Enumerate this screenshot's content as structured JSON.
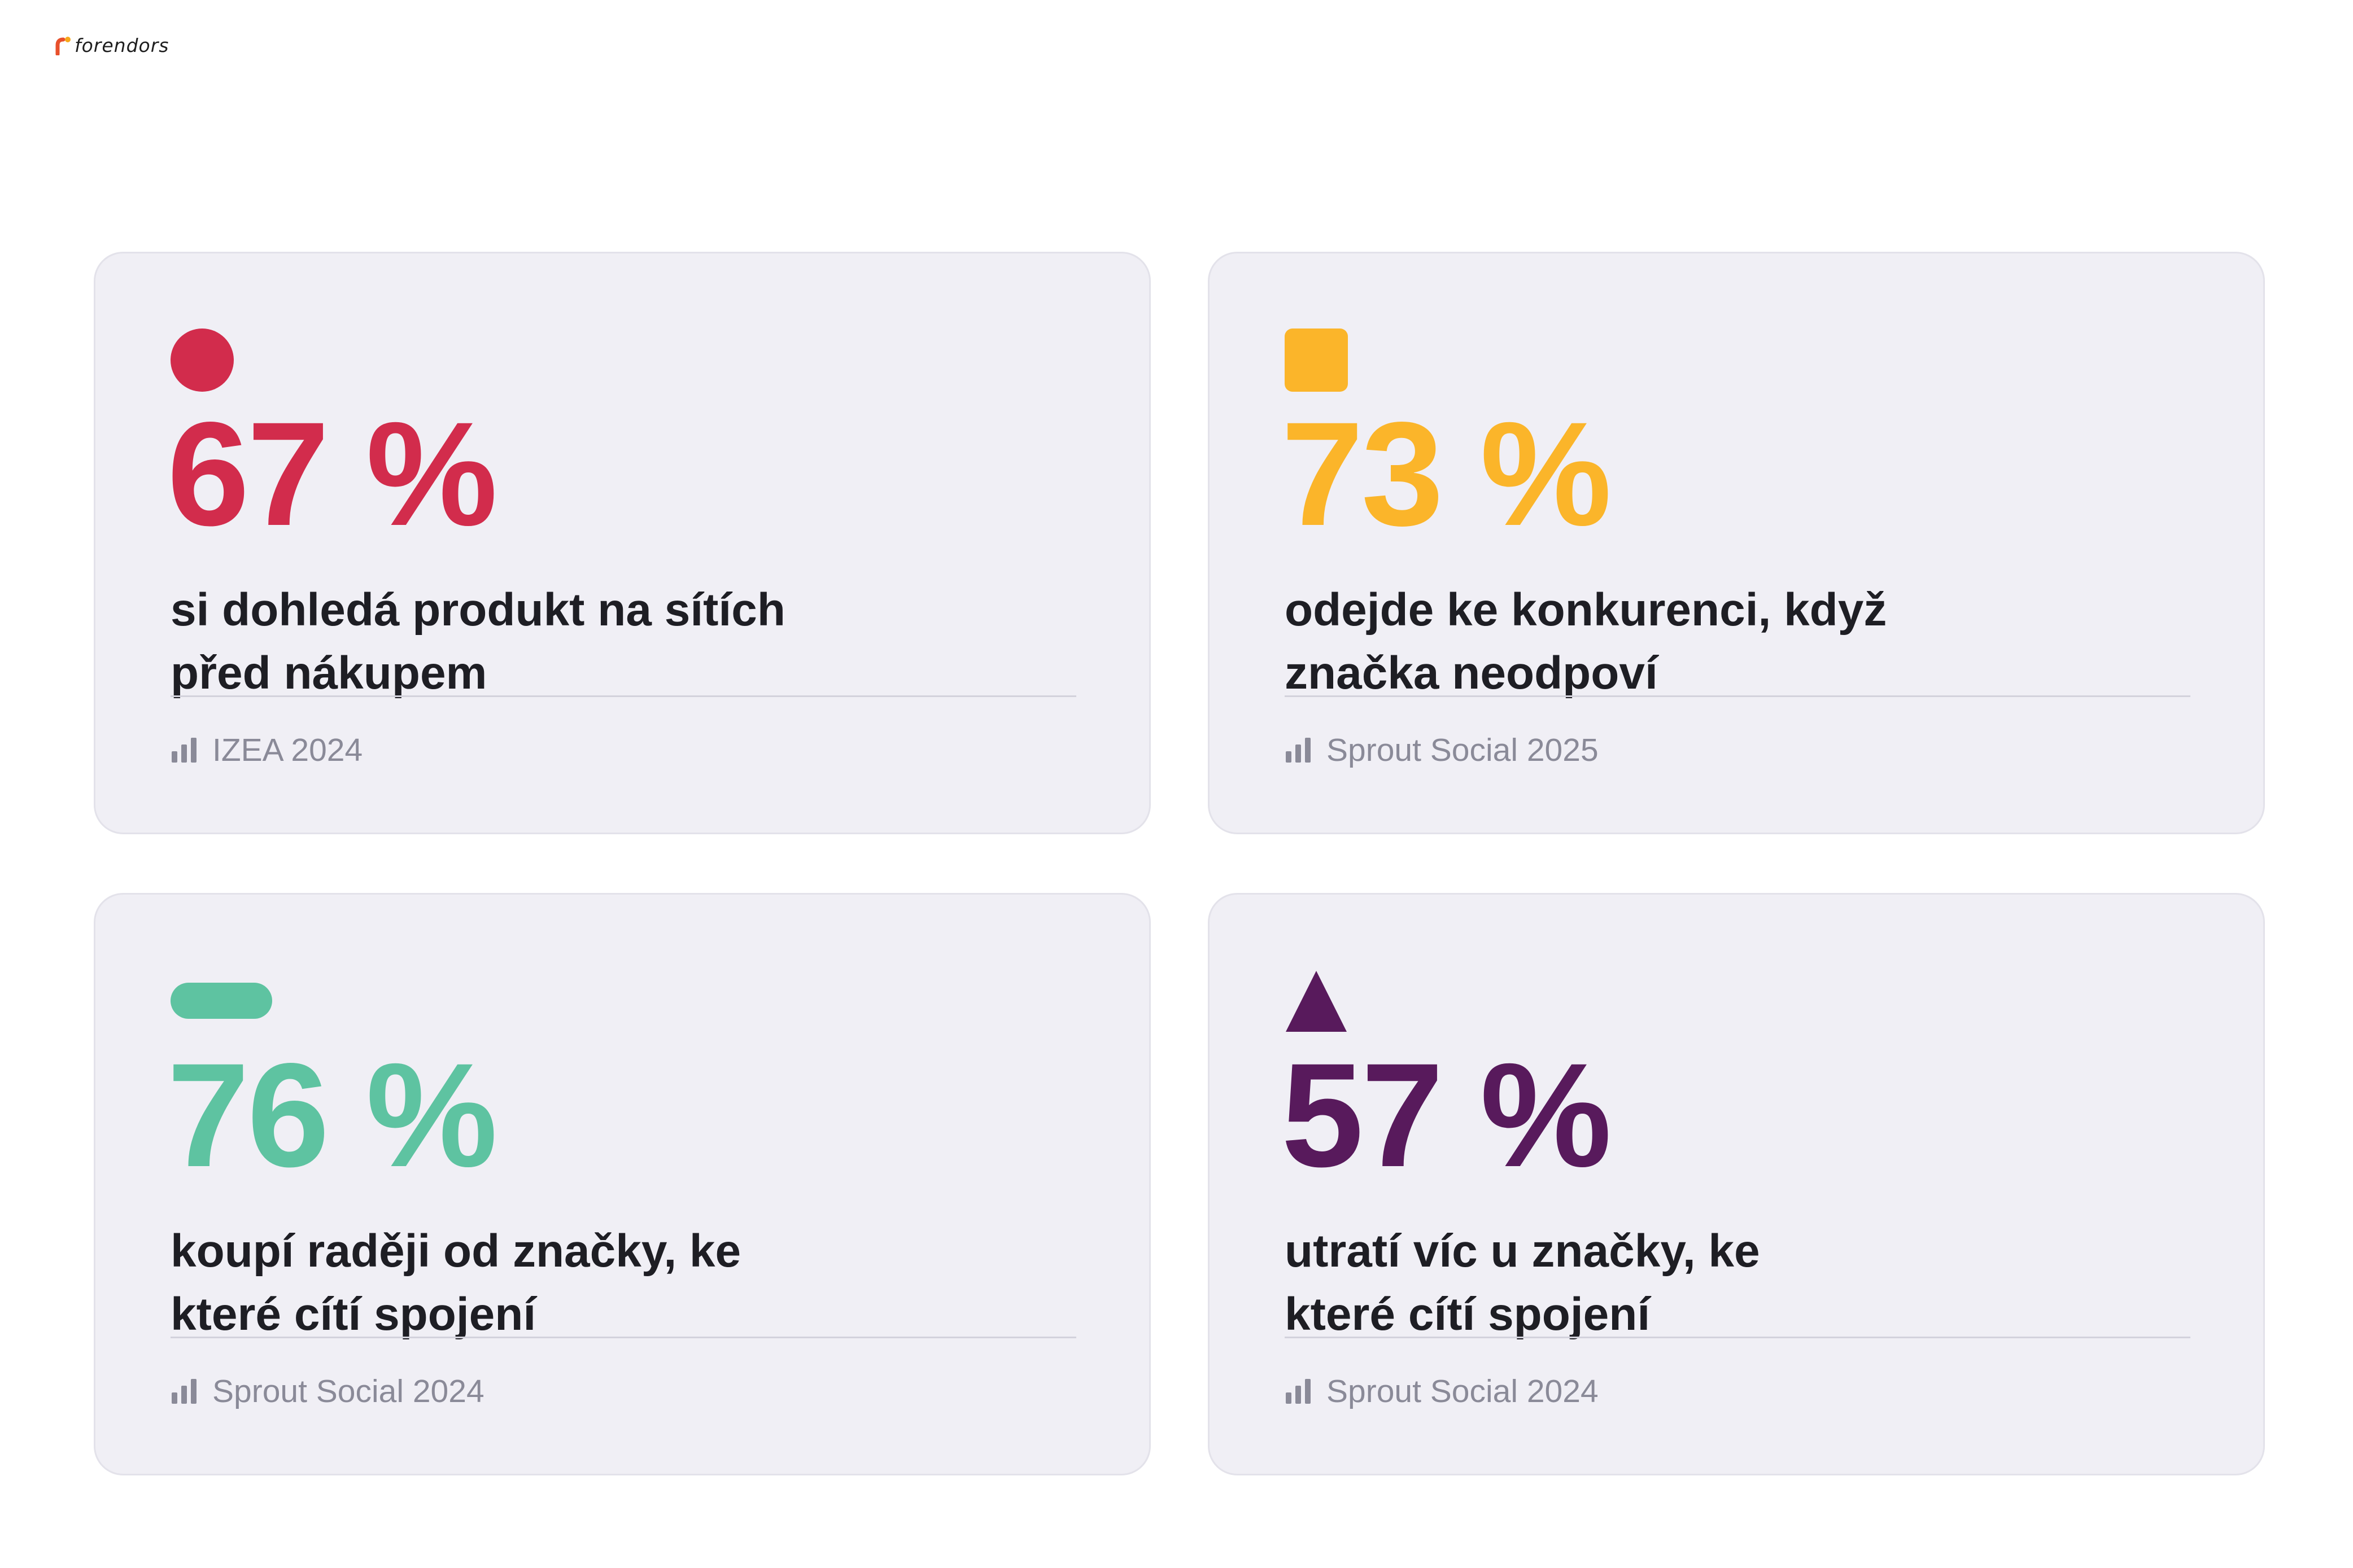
{
  "brand": {
    "logo_text": "forendors",
    "logo_colors": [
      "#e8502b",
      "#f7a81b"
    ]
  },
  "cards": [
    {
      "shape": "circle",
      "color": "#d22c4c",
      "value": "67 %",
      "line1": "si dohledá produkt na sítích",
      "line2": "před nákupem",
      "source": "IZEA 2024",
      "source_icon": "bar-chart-icon"
    },
    {
      "shape": "square",
      "color": "#fbb52a",
      "value": "73 %",
      "line1": "odejde ke konkurenci, když",
      "line2": "značka neodpoví",
      "source": "Sprout Social 2025",
      "source_icon": "bar-chart-icon"
    },
    {
      "shape": "pill",
      "color": "#5ec3a1",
      "value": "76 %",
      "line1": "koupí raději od značky, ke",
      "line2": "které cítí spojení",
      "source": "Sprout Social 2024",
      "source_icon": "bar-chart-icon"
    },
    {
      "shape": "triangle",
      "color": "#581a5c",
      "value": "57 %",
      "line1": "utratí víc u značky, ke",
      "line2": "které cítí spojení",
      "source": "Sprout Social 2024",
      "source_icon": "bar-chart-icon"
    }
  ]
}
